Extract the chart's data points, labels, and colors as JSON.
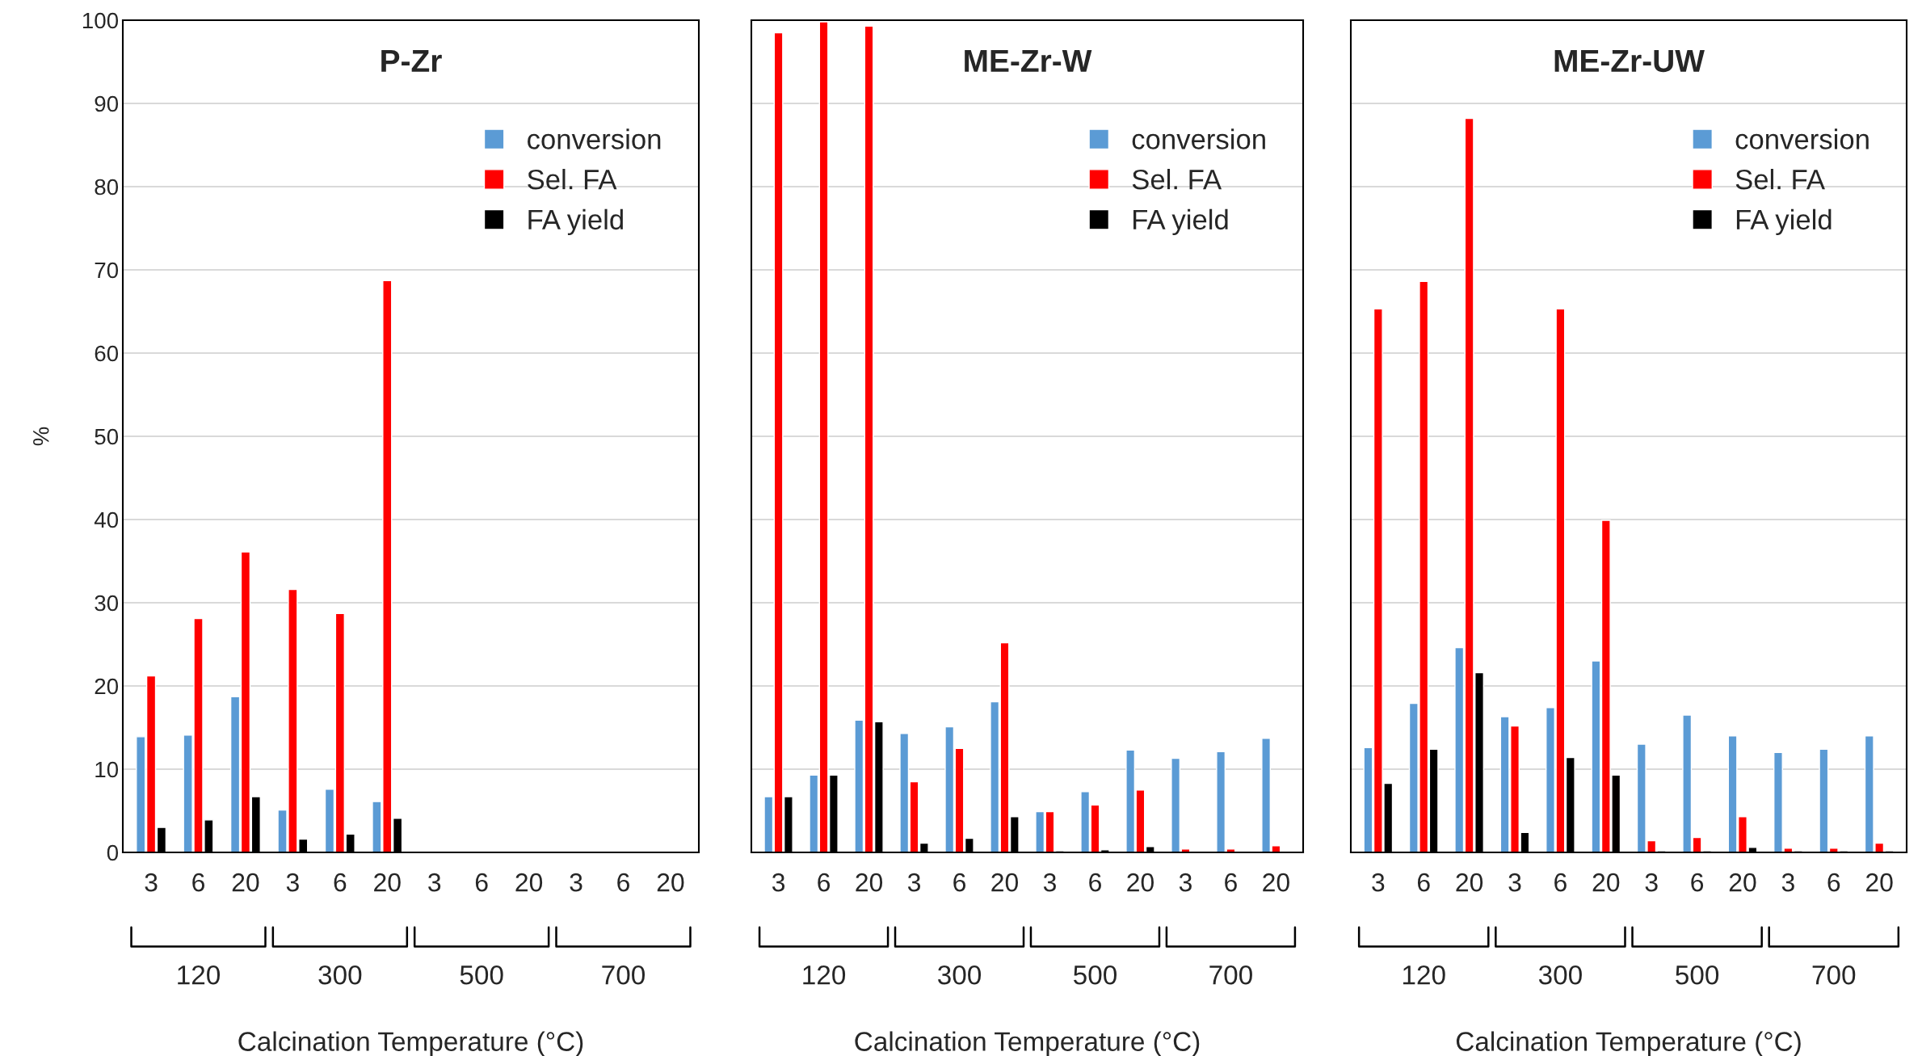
{
  "chart_data": [
    {
      "type": "bar",
      "title": "P-Zr",
      "ylabel": "%",
      "xlabel": "Calcination Temperature (°C)",
      "categories": [
        "3",
        "6",
        "20",
        "3",
        "6",
        "20",
        "3",
        "6",
        "20",
        "3",
        "6",
        "20"
      ],
      "series": [
        {
          "name": "conversion",
          "color": "#5b9bd5",
          "values": [
            13.9,
            14.1,
            18.7,
            5.1,
            7.6,
            6.1,
            null,
            null,
            null,
            null,
            null,
            null
          ]
        },
        {
          "name": "Sel. FA",
          "color": "#ff0000",
          "values": [
            21.2,
            28.1,
            36.1,
            31.6,
            28.7,
            68.7,
            null,
            null,
            null,
            null,
            null,
            null
          ]
        },
        {
          "name": "FA yield",
          "color": "#000000",
          "values": [
            3.0,
            3.9,
            6.7,
            1.6,
            2.2,
            4.1,
            null,
            null,
            null,
            null,
            null,
            null
          ]
        }
      ],
      "annotations": [
        "120",
        "300",
        "500",
        "700"
      ],
      "ylim": [
        0,
        100
      ],
      "yticks": [
        0,
        10,
        20,
        30,
        40,
        50,
        60,
        70,
        80,
        90,
        100
      ],
      "grid": "y",
      "legend": "top right"
    },
    {
      "type": "bar",
      "title": "ME-Zr-W",
      "xlabel": "Calcination Temperature (°C)",
      "categories": [
        "3",
        "6",
        "20",
        "3",
        "6",
        "20",
        "3",
        "6",
        "20",
        "3",
        "6",
        "20"
      ],
      "series": [
        {
          "name": "conversion",
          "color": "#5b9bd5",
          "values": [
            6.7,
            9.3,
            15.9,
            14.3,
            15.1,
            18.1,
            4.9,
            7.3,
            12.3,
            11.3,
            12.1,
            13.7
          ]
        },
        {
          "name": "Sel. FA",
          "color": "#ff0000",
          "values": [
            98.5,
            99.8,
            99.3,
            8.5,
            12.5,
            25.2,
            4.9,
            5.7,
            7.5,
            0.4,
            0.4,
            0.8
          ]
        },
        {
          "name": "FA yield",
          "color": "#000000",
          "values": [
            6.7,
            9.3,
            15.7,
            1.1,
            1.7,
            4.3,
            0.2,
            0.3,
            0.7,
            0.1,
            0.1,
            0.1
          ]
        }
      ],
      "annotations": [
        "120",
        "300",
        "500",
        "700"
      ],
      "ylim": [
        0,
        100
      ],
      "yticks": [
        0,
        10,
        20,
        30,
        40,
        50,
        60,
        70,
        80,
        90,
        100
      ],
      "grid": "y",
      "legend": "top right",
      "tick_labels": "x"
    },
    {
      "type": "bar",
      "title": "ME-Zr-UW",
      "xlabel": "Calcination Temperature (°C)",
      "categories": [
        "3",
        "6",
        "20",
        "3",
        "6",
        "20",
        "3",
        "6",
        "20",
        "3",
        "6",
        "20"
      ],
      "series": [
        {
          "name": "conversion",
          "color": "#5b9bd5",
          "values": [
            12.6,
            17.9,
            24.6,
            16.3,
            17.4,
            23.0,
            13.0,
            16.5,
            14.0,
            12.0,
            12.4,
            14.0
          ]
        },
        {
          "name": "Sel. FA",
          "color": "#ff0000",
          "values": [
            65.3,
            68.6,
            88.2,
            15.2,
            65.3,
            39.9,
            1.4,
            1.8,
            4.3,
            0.5,
            0.5,
            1.1
          ]
        },
        {
          "name": "FA yield",
          "color": "#000000",
          "values": [
            8.3,
            12.4,
            21.6,
            2.4,
            11.4,
            9.3,
            0.2,
            0.2,
            0.6,
            0.2,
            0.2,
            0.2
          ]
        }
      ],
      "annotations": [
        "120",
        "300",
        "500",
        "700"
      ],
      "ylim": [
        0,
        100
      ],
      "yticks": [
        0,
        10,
        20,
        30,
        40,
        50,
        60,
        70,
        80,
        90,
        100
      ],
      "grid": "y",
      "legend": "top right",
      "tick_labels": "x"
    }
  ]
}
